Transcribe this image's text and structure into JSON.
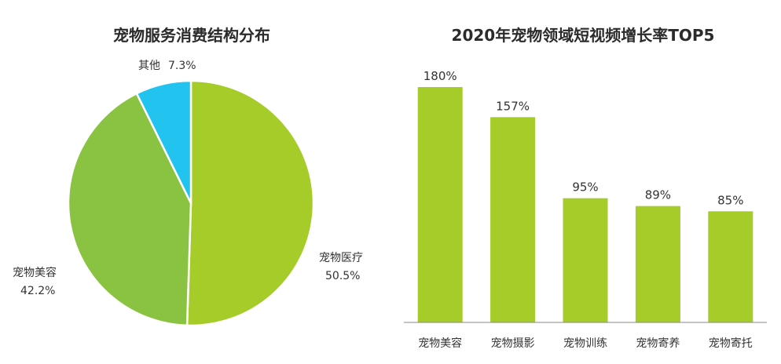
{
  "chart_data": [
    {
      "type": "pie",
      "title": "宠物服务消费结构分布",
      "slices": [
        {
          "label": "宠物医疗",
          "value": 50.5,
          "value_text": "50.5%",
          "color": "#a6cc2a"
        },
        {
          "label": "宠物美容",
          "value": 42.2,
          "value_text": "42.2%",
          "color": "#8ac341"
        },
        {
          "label": "其他",
          "value": 7.3,
          "value_text": "7.3%",
          "color": "#22c3ef"
        }
      ]
    },
    {
      "type": "bar",
      "title": "2020年宠物领域短视频增长率TOP5",
      "categories": [
        "宠物美容",
        "宠物摄影",
        "宠物训练",
        "宠物寄养",
        "宠物寄托"
      ],
      "values": [
        180,
        157,
        95,
        89,
        85
      ],
      "value_labels": [
        "180%",
        "157%",
        "95%",
        "89%",
        "85%"
      ],
      "ylim": [
        0,
        180
      ],
      "grid": false,
      "colors": {
        "bar": "#a6cc2a",
        "axis": "#888888"
      }
    }
  ]
}
